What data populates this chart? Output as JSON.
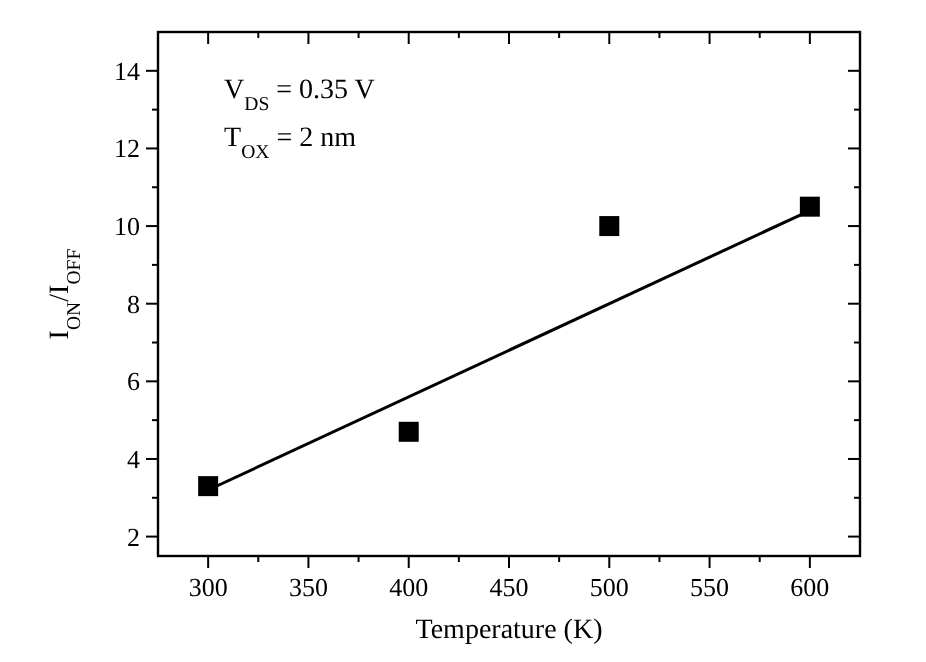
{
  "chart_data": {
    "type": "scatter",
    "xlabel": "Temperature (K)",
    "ylabel": "I$_{ON}$/I$_{OFF}$",
    "annotations": [
      "V$_{DS}$ = 0.35 V",
      "T$_{OX}$ = 2 nm"
    ],
    "x": [
      300,
      400,
      500,
      600
    ],
    "series": [
      {
        "color": "#000000",
        "marker": "square",
        "values": [
          3.3,
          4.7,
          10.0,
          10.5
        ]
      },
      {
        "type": "line",
        "color": "#000000",
        "marker": "none",
        "line_style": "solid",
        "x": [
          300,
          600
        ],
        "values": [
          3.2,
          10.4
        ]
      }
    ],
    "xlim": [
      275,
      625
    ],
    "ylim": [
      1.5,
      15
    ],
    "xticks": [
      300,
      {
        "value": 325,
        "label": null
      },
      350,
      {
        "value": 375,
        "label": null
      },
      400,
      {
        "value": 425,
        "label": null
      },
      450,
      {
        "value": 475,
        "label": null
      },
      500,
      {
        "value": 525,
        "label": null
      },
      550,
      {
        "value": 575,
        "label": null
      },
      600
    ],
    "yticks": [
      2,
      {
        "value": 3,
        "label": null
      },
      4,
      {
        "value": 5,
        "label": null
      },
      6,
      {
        "value": 7,
        "label": null
      },
      8,
      {
        "value": 9,
        "label": null
      },
      10,
      {
        "value": 11,
        "label": null
      },
      12,
      {
        "value": 13,
        "label": null
      },
      14
    ],
    "grid": false
  }
}
